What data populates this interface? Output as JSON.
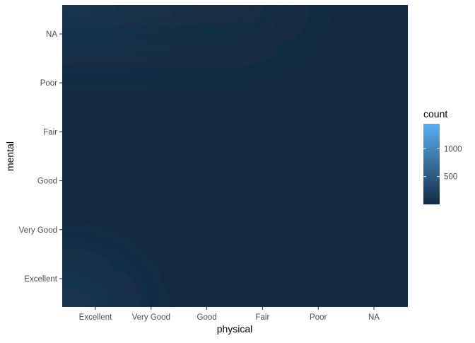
{
  "chart_data": {
    "type": "heatmap",
    "title": "",
    "xlabel": "physical",
    "ylabel": "mental",
    "x_categories": [
      "Excellent",
      "Very Good",
      "Good",
      "Fair",
      "Poor",
      "NA"
    ],
    "y_categories": [
      "Excellent",
      "Very Good",
      "Good",
      "Fair",
      "Poor",
      "NA"
    ],
    "value_name": "count",
    "density": [
      [
        140,
        0,
        0,
        0,
        0,
        0
      ],
      [
        0,
        0,
        0,
        0,
        0,
        0
      ],
      [
        0,
        0,
        0,
        0,
        0,
        0
      ],
      [
        0,
        0,
        0,
        0,
        0,
        0
      ],
      [
        0,
        0,
        0,
        0,
        0,
        0
      ],
      [
        150,
        110,
        60,
        20,
        0,
        0
      ]
    ],
    "legend": {
      "title": "count",
      "position": "right",
      "range": [
        0,
        1450
      ],
      "breaks": [
        500,
        1000
      ],
      "break_labels": [
        "500",
        "1000"
      ],
      "low_color": "#132B43",
      "high_color": "#56B1F7"
    },
    "panel_background": "#EBEBEB",
    "grid": false
  }
}
